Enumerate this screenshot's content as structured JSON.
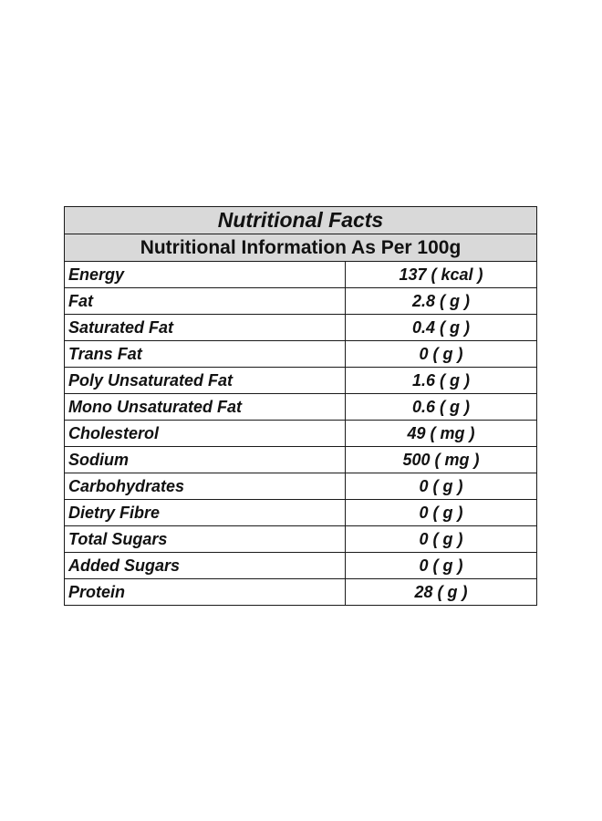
{
  "title": "Nutritional Facts",
  "subtitle": "Nutritional Information As Per 100g",
  "rows": [
    {
      "name": "Energy",
      "value": "137 ( kcal )"
    },
    {
      "name": "Fat",
      "value": "2.8 ( g )"
    },
    {
      "name": "Saturated Fat",
      "value": "0.4 ( g )"
    },
    {
      "name": "Trans Fat",
      "value": "0 ( g )"
    },
    {
      "name": "Poly Unsaturated Fat",
      "value": "1.6 ( g )"
    },
    {
      "name": "Mono Unsaturated Fat",
      "value": "0.6 ( g )"
    },
    {
      "name": "Cholesterol",
      "value": "49 ( mg )"
    },
    {
      "name": "Sodium",
      "value": "500 ( mg )"
    },
    {
      "name": "Carbohydrates",
      "value": "0 ( g )"
    },
    {
      "name": "Dietry Fibre",
      "value": "0 ( g )"
    },
    {
      "name": "Total Sugars",
      "value": "0 ( g )"
    },
    {
      "name": "Added Sugars",
      "value": "0 ( g )"
    },
    {
      "name": "Protein",
      "value": "28 ( g )"
    }
  ],
  "colors": {
    "header_bg": "#d9d9d9",
    "border": "#1a1a1a",
    "text": "#111111"
  }
}
